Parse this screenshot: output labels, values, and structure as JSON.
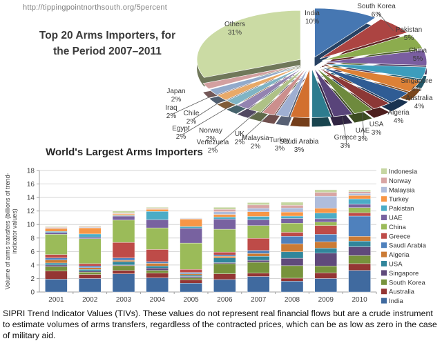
{
  "page": {
    "url_text": "http://tippingpointnorthsouth.org/5percent",
    "caption": "SIPRI Trend Indicator Values (TIVs). These values do not represent real financial flows but are a crude instrument to estimate volumes of arms transfers, regardless of the contracted prices, which can be as low as zero in the case of military aid."
  },
  "chart_data": [
    {
      "type": "pie",
      "style": "3d-exploded",
      "title_lines": [
        "Top 20 Arms Importers, for",
        "the Period 2007–2011"
      ],
      "unit": "%",
      "labels": [
        "India",
        "South Korea",
        "Pakistan",
        "China",
        "Singapore",
        "Australia",
        "Algeria",
        "USA",
        "UAE",
        "Greece",
        "Saudi Arabia",
        "Turkey",
        "Malaysia",
        "UK",
        "Venezuela",
        "Norway",
        "Egypt",
        "Chile",
        "Iraq",
        "Japan",
        "Others"
      ],
      "values": [
        10,
        6,
        5,
        5,
        4,
        4,
        4,
        3,
        3,
        3,
        3,
        3,
        2,
        2,
        2,
        2,
        2,
        2,
        2,
        2,
        31
      ],
      "colors": [
        "#4677B2",
        "#AC4442",
        "#8CAC4E",
        "#7A5EA0",
        "#3D9DBC",
        "#DD8136",
        "#2F5C94",
        "#8C3836",
        "#6E8A3D",
        "#59447A",
        "#2D7C8E",
        "#D2702F",
        "#9FAFD2",
        "#CC8F8D",
        "#AEC186",
        "#9383B0",
        "#7FB4C4",
        "#E8A968",
        "#92AACB",
        "#D3A0A0",
        "#CBDBA4"
      ]
    },
    {
      "type": "bar",
      "stacked": true,
      "title": "World's Largest Arms Importers",
      "ylabel_lines": [
        "Volume of arms transfers (billions of trend-",
        "indicator values)"
      ],
      "ylim": [
        0,
        18
      ],
      "ytick_step": 2,
      "legend_position": "right",
      "categories": [
        "2001",
        "2002",
        "2003",
        "2004",
        "2005",
        "2006",
        "2007",
        "2008",
        "2009",
        "2010"
      ],
      "series": [
        {
          "name": "India",
          "color": "#406A9F",
          "values": [
            1.9,
            2.0,
            2.7,
            2.1,
            1.3,
            1.85,
            2.3,
            1.6,
            2.0,
            3.2
          ]
        },
        {
          "name": "Australia",
          "color": "#943634",
          "values": [
            1.2,
            0.6,
            0.5,
            0.7,
            0.5,
            0.85,
            0.5,
            0.45,
            0.85,
            1.0
          ]
        },
        {
          "name": "South Korea",
          "color": "#77933C",
          "values": [
            0.65,
            0.35,
            0.7,
            0.4,
            0.3,
            1.5,
            1.6,
            1.85,
            1.0,
            1.2
          ]
        },
        {
          "name": "Singapore",
          "color": "#604A7B",
          "values": [
            0.25,
            0.15,
            0.1,
            0.35,
            0.2,
            0.15,
            0.3,
            1.1,
            1.9,
            1.3
          ]
        },
        {
          "name": "USA",
          "color": "#31869B",
          "values": [
            0.3,
            0.25,
            0.5,
            0.3,
            0.2,
            0.7,
            0.6,
            0.95,
            0.75,
            0.85
          ]
        },
        {
          "name": "Algeria",
          "color": "#CB7B35",
          "values": [
            0.45,
            0.25,
            0.2,
            0.4,
            0.2,
            0.25,
            0.4,
            1.2,
            0.95,
            0.7
          ]
        },
        {
          "name": "Saudi Arabia",
          "color": "#4F81BD",
          "values": [
            0.3,
            0.25,
            0.35,
            0.25,
            0.2,
            0.2,
            0.45,
            1.1,
            1.1,
            3.0
          ]
        },
        {
          "name": "Greece",
          "color": "#BE4B48",
          "values": [
            0.5,
            0.35,
            2.3,
            1.8,
            0.45,
            0.4,
            1.8,
            0.6,
            1.3,
            0.5
          ]
        },
        {
          "name": "China",
          "color": "#9BBB59",
          "values": [
            3.0,
            3.7,
            3.3,
            3.2,
            3.9,
            3.4,
            1.9,
            1.35,
            0.5,
            0.75
          ]
        },
        {
          "name": "UAE",
          "color": "#7862A0",
          "values": [
            0.27,
            0.2,
            0.6,
            1.2,
            2.2,
            1.5,
            0.85,
            0.7,
            0.5,
            0.5
          ]
        },
        {
          "name": "Pakistan",
          "color": "#4BACC6",
          "values": [
            0.15,
            0.5,
            0.1,
            1.25,
            0.25,
            0.3,
            0.5,
            0.35,
            0.85,
            0.8
          ]
        },
        {
          "name": "Turkey",
          "color": "#F79646",
          "values": [
            0.45,
            0.9,
            0.2,
            0.3,
            1.1,
            0.4,
            0.7,
            0.6,
            0.7,
            0.5
          ]
        },
        {
          "name": "Malaysia",
          "color": "#AFBDDC",
          "values": [
            0.1,
            0.1,
            0.05,
            0.05,
            0.1,
            0.4,
            0.5,
            0.6,
            1.8,
            0.3
          ]
        },
        {
          "name": "Norway",
          "color": "#D8A5A4",
          "values": [
            0.1,
            0.1,
            0.1,
            0.1,
            0.05,
            0.35,
            0.5,
            0.4,
            0.55,
            0.25
          ]
        },
        {
          "name": "Indonesia",
          "color": "#C6D6A2",
          "values": [
            0.1,
            0.1,
            0.3,
            0.15,
            0.05,
            0.3,
            0.35,
            0.45,
            0.4,
            0.25
          ]
        }
      ]
    }
  ]
}
